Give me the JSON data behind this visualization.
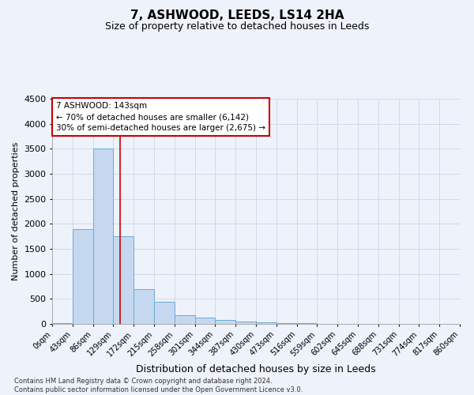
{
  "title": "7, ASHWOOD, LEEDS, LS14 2HA",
  "subtitle": "Size of property relative to detached houses in Leeds",
  "xlabel": "Distribution of detached houses by size in Leeds",
  "ylabel": "Number of detached properties",
  "bin_edges": [
    0,
    43,
    86,
    129,
    172,
    215,
    258,
    301,
    344,
    387,
    430,
    473,
    516,
    559,
    602,
    645,
    688,
    731,
    774,
    817,
    860
  ],
  "bar_heights": [
    15,
    1900,
    3500,
    1750,
    700,
    450,
    175,
    130,
    80,
    40,
    30,
    20,
    10,
    5,
    3,
    3,
    3,
    3,
    2,
    2
  ],
  "bar_color": "#c5d8f0",
  "bar_edge_color": "#6aabd2",
  "background_color": "#eef2fb",
  "grid_color": "#c8cfe0",
  "vline_x": 143,
  "vline_color": "#cc0000",
  "annotation_text": "7 ASHWOOD: 143sqm\n← 70% of detached houses are smaller (6,142)\n30% of semi-detached houses are larger (2,675) →",
  "annotation_box_color": "#ffffff",
  "annotation_box_edge": "#cc0000",
  "ylim": [
    0,
    4500
  ],
  "yticks": [
    0,
    500,
    1000,
    1500,
    2000,
    2500,
    3000,
    3500,
    4000,
    4500
  ],
  "footer_line1": "Contains HM Land Registry data © Crown copyright and database right 2024.",
  "footer_line2": "Contains public sector information licensed under the Open Government Licence v3.0.",
  "title_fontsize": 11,
  "subtitle_fontsize": 9,
  "xlabel_fontsize": 9,
  "ylabel_fontsize": 8,
  "tick_label_fontsize": 7,
  "annotation_fontsize": 7.5,
  "footer_fontsize": 6
}
